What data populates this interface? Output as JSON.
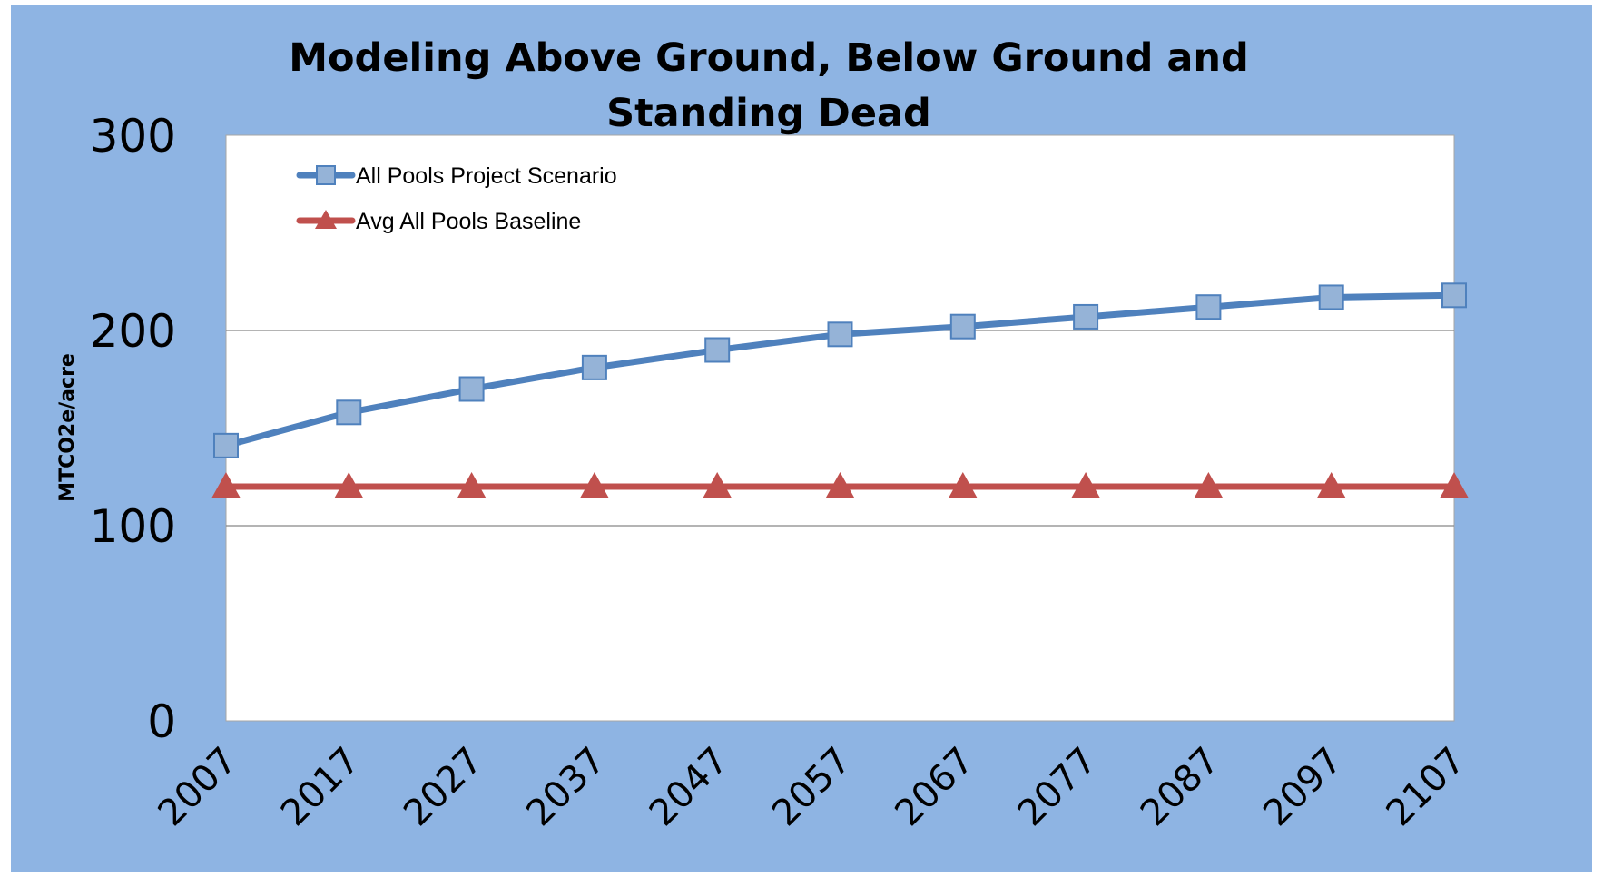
{
  "chart_data": {
    "type": "line",
    "title_lines": [
      "Modeling Above Ground, Below Ground and",
      "Standing Dead"
    ],
    "xlabel": "",
    "ylabel": "MTCO2e/acre",
    "x": [
      "2007",
      "2017",
      "2027",
      "2037",
      "2047",
      "2057",
      "2067",
      "2077",
      "2087",
      "2097",
      "2107"
    ],
    "ylim": [
      0,
      300
    ],
    "yticks": [
      "0",
      "100",
      "200",
      "300"
    ],
    "grid": true,
    "legend_position": "top-left",
    "series": [
      {
        "name": "All Pools Project Scenario",
        "values": [
          141,
          158,
          170,
          181,
          190,
          198,
          202,
          207,
          212,
          217,
          218
        ],
        "color": "#4f81bd",
        "marker_color": "#95b3d7",
        "marker": "square"
      },
      {
        "name": "Avg All Pools Baseline",
        "values": [
          120,
          120,
          120,
          120,
          120,
          120,
          120,
          120,
          120,
          120,
          120
        ],
        "color": "#c0504d",
        "marker_color": "#c0504d",
        "marker": "triangle"
      }
    ],
    "colors": {
      "background": "#8eb4e3",
      "plot_area": "#ffffff",
      "gridline": "#868686"
    }
  }
}
